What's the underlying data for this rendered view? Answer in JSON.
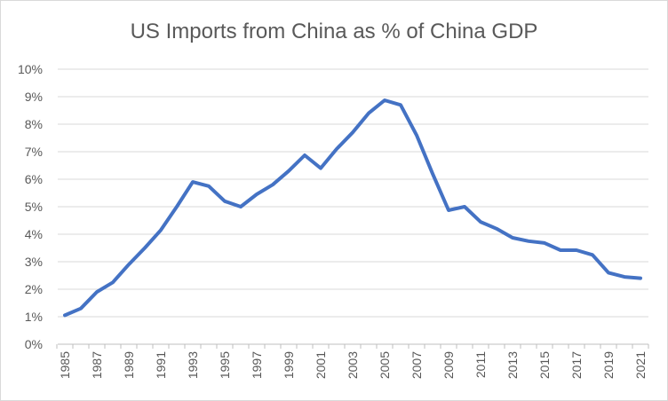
{
  "chart_data": {
    "type": "line",
    "title": "US Imports from China as % of China GDP",
    "xlabel": "",
    "ylabel": "",
    "x": [
      1985,
      1986,
      1987,
      1988,
      1989,
      1990,
      1991,
      1992,
      1993,
      1994,
      1995,
      1996,
      1997,
      1998,
      1999,
      2000,
      2001,
      2002,
      2003,
      2004,
      2005,
      2006,
      2007,
      2008,
      2009,
      2010,
      2011,
      2012,
      2013,
      2014,
      2015,
      2016,
      2017,
      2018,
      2019,
      2020,
      2021
    ],
    "series": [
      {
        "name": "US Imports from China as % of China GDP",
        "color": "#4472C4",
        "values": [
          1.05,
          1.3,
          1.9,
          2.25,
          2.9,
          3.5,
          4.15,
          5.0,
          5.9,
          5.75,
          5.2,
          5.0,
          5.45,
          5.8,
          6.3,
          6.87,
          6.4,
          7.1,
          7.7,
          8.4,
          8.87,
          8.7,
          7.6,
          6.2,
          4.87,
          5.0,
          4.45,
          4.2,
          3.87,
          3.75,
          3.68,
          3.42,
          3.42,
          3.25,
          2.6,
          2.45,
          2.4
        ]
      }
    ],
    "ylim": [
      0,
      10
    ],
    "yticks": [
      "0%",
      "1%",
      "2%",
      "3%",
      "4%",
      "5%",
      "6%",
      "7%",
      "8%",
      "9%",
      "10%"
    ],
    "xtick_labels": [
      "1985",
      "1987",
      "1989",
      "1991",
      "1993",
      "1995",
      "1997",
      "1999",
      "2001",
      "2003",
      "2005",
      "2007",
      "2009",
      "2011",
      "2013",
      "2015",
      "2017",
      "2019",
      "2021"
    ],
    "grid": true,
    "legend": "none"
  }
}
